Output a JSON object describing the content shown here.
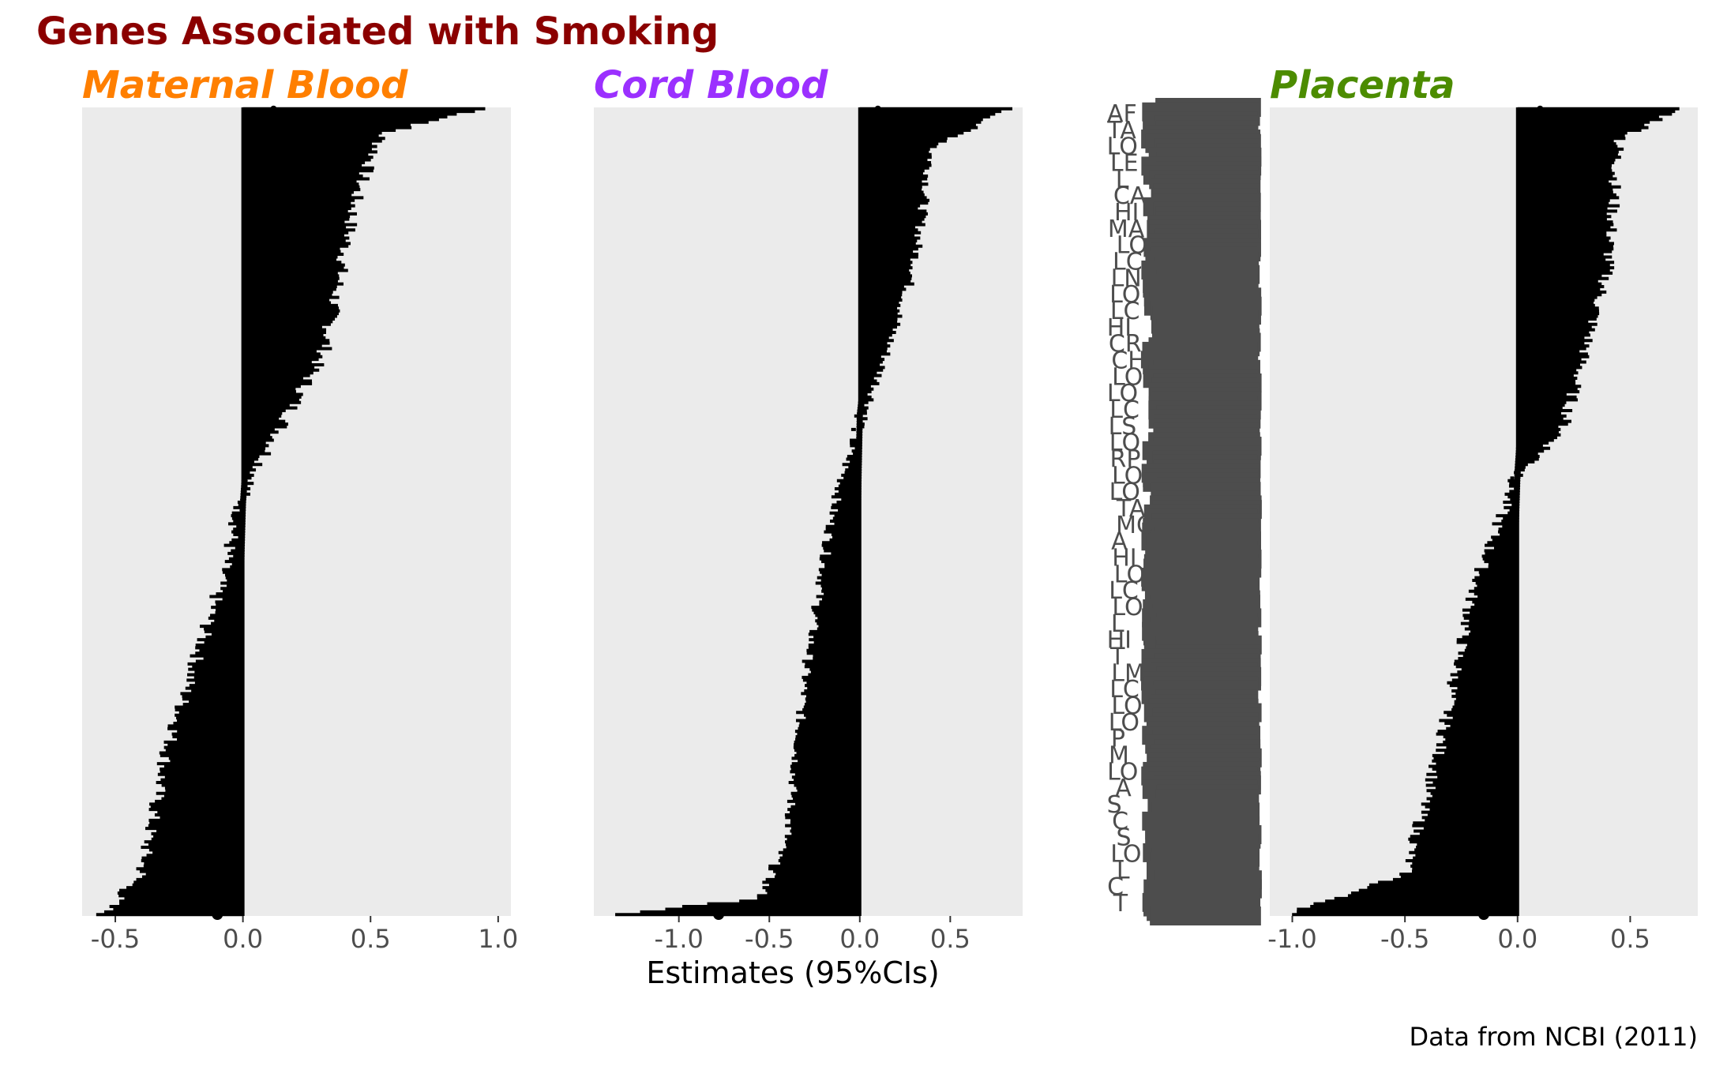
{
  "title": "Genes Associated with Smoking",
  "caption": "Data from NCBI (2011)",
  "xlabel": "Estimates (95%CIs)",
  "colors": {
    "title": "#8B0000",
    "panel_bg": "#EBEBEB",
    "marks": "#000000",
    "tick_text": "#4D4D4D",
    "gene_label": "#4D4D4D"
  },
  "gene_labels": [
    "AF",
    "TA",
    "LO",
    "LE",
    "L",
    "CA",
    "HI",
    "MA",
    "LO",
    "LC",
    "LN",
    "LO",
    "LC",
    "HI",
    "CR",
    "CH",
    "LO",
    "LO",
    "LC",
    "LS",
    "LO",
    "RP",
    "LO",
    "LO",
    "TA",
    "MC",
    "A",
    "HI",
    "LO",
    "LC",
    "LO",
    "L",
    "HI",
    "T",
    "LM",
    "LC",
    "LO",
    "LO",
    "P",
    "M",
    "LO",
    "A",
    "S",
    "C",
    "S",
    "LO",
    "L",
    "C",
    "T"
  ],
  "chart_data": [
    {
      "type": "forest",
      "panel": "Maternal Blood",
      "title": "Maternal Blood",
      "title_color": "#FF7F00",
      "xlim": [
        -0.63,
        1.05
      ],
      "xticks": [
        -0.5,
        0.0,
        0.5,
        1.0
      ],
      "xtick_labels": [
        "-0.5",
        "0.0",
        "0.5",
        "1.0"
      ],
      "reference_line": 0,
      "n_genes": 300,
      "estimate_curve": [
        [
          0.0,
          0.12
        ],
        [
          0.05,
          0.08
        ],
        [
          0.2,
          0.05
        ],
        [
          0.4,
          0.02
        ],
        [
          0.49,
          0.0
        ],
        [
          0.6,
          -0.01
        ],
        [
          0.8,
          -0.03
        ],
        [
          0.95,
          -0.06
        ],
        [
          1.0,
          -0.1
        ]
      ],
      "ci_lower_curve": [
        [
          0.0,
          0.0
        ],
        [
          0.1,
          0.0
        ],
        [
          0.3,
          0.0
        ],
        [
          0.48,
          0.0
        ],
        [
          0.6,
          -0.1
        ],
        [
          0.8,
          -0.3
        ],
        [
          0.95,
          -0.4
        ],
        [
          1.0,
          -0.55
        ]
      ],
      "ci_upper_curve": [
        [
          0.0,
          0.95
        ],
        [
          0.03,
          0.55
        ],
        [
          0.1,
          0.45
        ],
        [
          0.3,
          0.32
        ],
        [
          0.48,
          0.0
        ],
        [
          0.6,
          0.0
        ],
        [
          0.8,
          0.0
        ],
        [
          1.0,
          0.0
        ]
      ]
    },
    {
      "type": "forest",
      "panel": "Cord Blood",
      "title": "Cord Blood",
      "title_color": "#9B30FF",
      "xlim": [
        -1.47,
        0.9
      ],
      "xticks": [
        -1.0,
        -0.5,
        0.0,
        0.5
      ],
      "xtick_labels": [
        "-1.0",
        "-0.5",
        "0.0",
        "0.5"
      ],
      "reference_line": 0,
      "n_genes": 300,
      "estimate_curve": [
        [
          0.0,
          0.1
        ],
        [
          0.1,
          0.07
        ],
        [
          0.3,
          0.04
        ],
        [
          0.38,
          0.0
        ],
        [
          0.6,
          -0.02
        ],
        [
          0.9,
          -0.05
        ],
        [
          0.99,
          -0.15
        ],
        [
          1.0,
          -0.78
        ]
      ],
      "ci_lower_curve": [
        [
          0.0,
          0.0
        ],
        [
          0.38,
          0.0
        ],
        [
          0.5,
          -0.15
        ],
        [
          0.7,
          -0.3
        ],
        [
          0.9,
          -0.4
        ],
        [
          0.98,
          -0.55
        ],
        [
          1.0,
          -1.37
        ]
      ],
      "ci_upper_curve": [
        [
          0.0,
          0.82
        ],
        [
          0.05,
          0.4
        ],
        [
          0.2,
          0.3
        ],
        [
          0.37,
          0.05
        ],
        [
          0.4,
          0.0
        ],
        [
          1.0,
          0.0
        ]
      ]
    },
    {
      "type": "forest",
      "panel": "Placenta",
      "title": "Placenta",
      "title_color": "#4C8C00",
      "xlim": [
        -1.1,
        0.8
      ],
      "xticks": [
        -1.0,
        -0.5,
        0.0,
        0.5
      ],
      "xtick_labels": [
        "-1.0",
        "-0.5",
        "0.0",
        "0.5"
      ],
      "reference_line": 0,
      "n_genes": 300,
      "estimate_curve": [
        [
          0.0,
          0.1
        ],
        [
          0.2,
          0.06
        ],
        [
          0.45,
          0.0
        ],
        [
          0.7,
          -0.03
        ],
        [
          0.95,
          -0.08
        ],
        [
          1.0,
          -0.15
        ]
      ],
      "ci_lower_curve": [
        [
          0.0,
          0.0
        ],
        [
          0.45,
          0.0
        ],
        [
          0.6,
          -0.2
        ],
        [
          0.8,
          -0.35
        ],
        [
          0.95,
          -0.5
        ],
        [
          1.0,
          -1.02
        ]
      ],
      "ci_upper_curve": [
        [
          0.0,
          0.72
        ],
        [
          0.04,
          0.45
        ],
        [
          0.2,
          0.4
        ],
        [
          0.4,
          0.2
        ],
        [
          0.46,
          0.0
        ],
        [
          1.0,
          0.0
        ]
      ]
    }
  ]
}
